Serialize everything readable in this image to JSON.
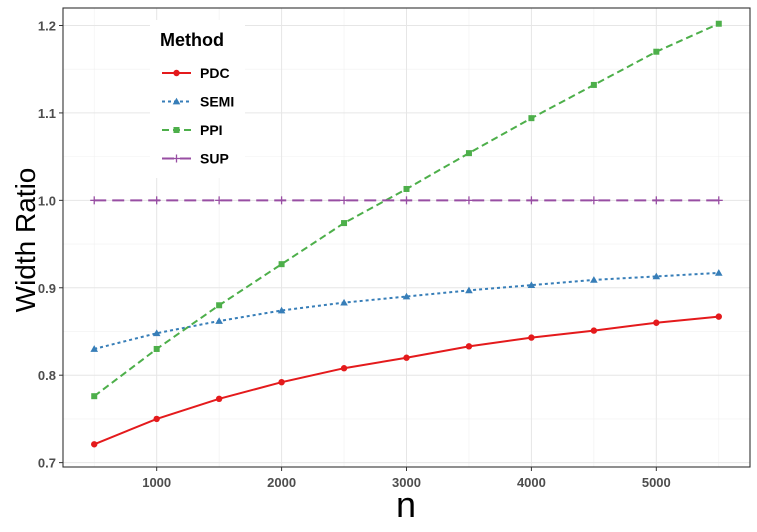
{
  "chart_data": {
    "type": "line",
    "title": "",
    "xlabel": "n",
    "ylabel": "Width Ratio",
    "x": [
      500,
      1000,
      1500,
      2000,
      2500,
      3000,
      3500,
      4000,
      4500,
      5000,
      5500
    ],
    "xlim": [
      250,
      5750
    ],
    "ylim": [
      0.695,
      1.22
    ],
    "xticks": [
      1000,
      2000,
      3000,
      4000,
      5000
    ],
    "yticks": [
      0.7,
      0.8,
      0.9,
      1.0,
      1.1,
      1.2
    ],
    "xtick_labels": [
      "1000",
      "2000",
      "3000",
      "4000",
      "5000"
    ],
    "ytick_labels": [
      "0.7",
      "0.8",
      "0.9",
      "1.0",
      "1.1",
      "1.2"
    ],
    "grid": true,
    "legend": {
      "title": "Method",
      "placement": "top-left"
    },
    "series": [
      {
        "name": "PDC",
        "color": "#e41a1c",
        "dash": "solid",
        "marker": "circle",
        "values": [
          0.721,
          0.75,
          0.773,
          0.792,
          0.808,
          0.82,
          0.833,
          0.843,
          0.851,
          0.86,
          0.867
        ]
      },
      {
        "name": "SEMI",
        "color": "#377eb8",
        "dash": "dotted",
        "marker": "triangle",
        "values": [
          0.83,
          0.848,
          0.862,
          0.874,
          0.883,
          0.89,
          0.897,
          0.903,
          0.909,
          0.913,
          0.917
        ]
      },
      {
        "name": "PPI",
        "color": "#4daf4a",
        "dash": "dashed",
        "marker": "square",
        "values": [
          0.776,
          0.83,
          0.88,
          0.927,
          0.974,
          1.013,
          1.054,
          1.094,
          1.132,
          1.17,
          1.202
        ]
      },
      {
        "name": "SUP",
        "color": "#984ea3",
        "dash": "longdash",
        "marker": "plus",
        "values": [
          1.0,
          1.0,
          1.0,
          1.0,
          1.0,
          1.0,
          1.0,
          1.0,
          1.0,
          1.0,
          1.0
        ]
      }
    ]
  }
}
